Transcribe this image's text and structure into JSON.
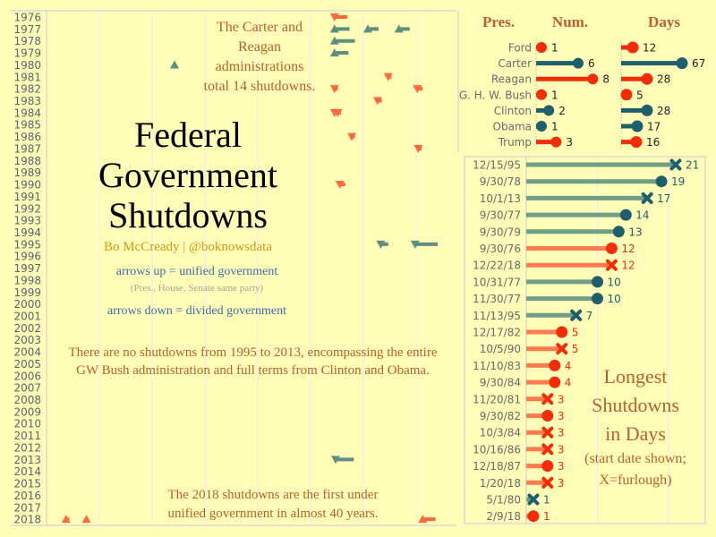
{
  "title": "Federal Government Shutdowns",
  "title_lines": [
    "Federal",
    "Government",
    "Shutdowns"
  ],
  "byline": "Bo McCready | @boknowsdata",
  "legend": {
    "up": "arrows up = unified government",
    "up_note": "(Pres., House, Senate same party)",
    "down": "arrows down = divided government"
  },
  "annotations": {
    "carter_reagan": [
      "The Carter and",
      "Reagan",
      "administrations",
      "total 14 shutdowns."
    ],
    "gap": [
      "There are no shutdowns from 1995 to 2013, encompassing the entire",
      "GW Bush administration and full terms from Clinton and Obama."
    ],
    "y2018": [
      "The 2018 shutdowns are the first under",
      "unified government in almost 40 years."
    ],
    "longest": [
      "Longest",
      "Shutdowns",
      "in Days",
      "(start date shown;",
      "X=furlough)"
    ]
  },
  "colors": {
    "background": "#fffdb8",
    "democrat": "#1f5f6b",
    "republican": "#f22d0a",
    "democrat_bar": "#6f9e85",
    "republican_bar": "#ff7b4f",
    "annotation": "#b8612a"
  },
  "chart_data": [
    {
      "type": "scatter",
      "description_key": "timeline",
      "years": [
        1976,
        1977,
        1978,
        1979,
        1980,
        1981,
        1982,
        1983,
        1984,
        1985,
        1986,
        1987,
        1988,
        1989,
        1990,
        1991,
        1992,
        1993,
        1994,
        1995,
        1996,
        1997,
        1998,
        1999,
        2000,
        2001,
        2002,
        2003,
        2004,
        2005,
        2006,
        2007,
        2008,
        2009,
        2010,
        2011,
        2012,
        2013,
        2014,
        2015,
        2016,
        2017,
        2018
      ],
      "points": [
        {
          "date": "1976-09-30",
          "days": 12,
          "party": "R",
          "gov": "divided"
        },
        {
          "date": "1977-09-30",
          "days": 14,
          "party": "D",
          "gov": "unified"
        },
        {
          "date": "1977-10-31",
          "days": 10,
          "party": "D",
          "gov": "unified"
        },
        {
          "date": "1977-11-30",
          "days": 10,
          "party": "D",
          "gov": "unified"
        },
        {
          "date": "1978-09-30",
          "days": 19,
          "party": "D",
          "gov": "unified"
        },
        {
          "date": "1979-09-30",
          "days": 13,
          "party": "D",
          "gov": "unified"
        },
        {
          "date": "1980-05-01",
          "days": 1,
          "party": "D",
          "gov": "unified"
        },
        {
          "date": "1981-11-20",
          "days": 3,
          "party": "R",
          "gov": "divided"
        },
        {
          "date": "1982-09-30",
          "days": 3,
          "party": "R",
          "gov": "divided"
        },
        {
          "date": "1982-12-17",
          "days": 5,
          "party": "R",
          "gov": "divided"
        },
        {
          "date": "1983-11-10",
          "days": 4,
          "party": "R",
          "gov": "divided"
        },
        {
          "date": "1984-09-30",
          "days": 4,
          "party": "R",
          "gov": "divided"
        },
        {
          "date": "1984-10-03",
          "days": 3,
          "party": "R",
          "gov": "divided"
        },
        {
          "date": "1986-10-16",
          "days": 3,
          "party": "R",
          "gov": "divided"
        },
        {
          "date": "1987-12-18",
          "days": 3,
          "party": "R",
          "gov": "divided"
        },
        {
          "date": "1990-10-05",
          "days": 5,
          "party": "R",
          "gov": "divided"
        },
        {
          "date": "1995-11-13",
          "days": 7,
          "party": "D",
          "gov": "divided"
        },
        {
          "date": "1995-12-15",
          "days": 21,
          "party": "D",
          "gov": "divided"
        },
        {
          "date": "2013-10-01",
          "days": 17,
          "party": "D",
          "gov": "divided"
        },
        {
          "date": "2018-01-20",
          "days": 3,
          "party": "R",
          "gov": "unified"
        },
        {
          "date": "2018-02-09",
          "days": 1,
          "party": "R",
          "gov": "unified"
        },
        {
          "date": "2018-12-22",
          "days": 12,
          "party": "R",
          "gov": "unified"
        }
      ]
    },
    {
      "type": "bar",
      "headers": {
        "pres": "Pres.",
        "num": "Num.",
        "days": "Days"
      },
      "categories": [
        "Ford",
        "Carter",
        "Reagan",
        "G. H. W. Bush",
        "Clinton",
        "Obama",
        "Trump"
      ],
      "party": [
        "R",
        "D",
        "R",
        "R",
        "D",
        "D",
        "R"
      ],
      "series": [
        {
          "name": "Num.",
          "values": [
            1,
            6,
            8,
            1,
            2,
            1,
            3
          ]
        },
        {
          "name": "Days",
          "values": [
            12,
            67,
            28,
            5,
            28,
            17,
            16
          ]
        }
      ]
    },
    {
      "type": "bar",
      "categories": [
        "12/15/95",
        "9/30/78",
        "10/1/13",
        "9/30/77",
        "9/30/79",
        "9/30/76",
        "12/22/18",
        "10/31/77",
        "11/30/77",
        "11/13/95",
        "12/17/82",
        "10/5/90",
        "11/10/83",
        "9/30/84",
        "11/20/81",
        "9/30/82",
        "10/3/84",
        "10/16/86",
        "12/18/87",
        "1/20/18",
        "5/1/80",
        "2/9/18"
      ],
      "values": [
        21,
        19,
        17,
        14,
        13,
        12,
        12,
        10,
        10,
        7,
        5,
        5,
        4,
        4,
        3,
        3,
        3,
        3,
        3,
        3,
        1,
        1
      ],
      "party": [
        "D",
        "D",
        "D",
        "D",
        "D",
        "R",
        "R",
        "D",
        "D",
        "D",
        "R",
        "R",
        "R",
        "R",
        "R",
        "R",
        "R",
        "R",
        "R",
        "R",
        "D",
        "R"
      ],
      "furlough": [
        true,
        false,
        true,
        false,
        false,
        false,
        true,
        false,
        false,
        true,
        false,
        true,
        false,
        false,
        true,
        false,
        true,
        true,
        false,
        true,
        true,
        false
      ],
      "xlim": [
        0,
        25
      ],
      "grid": true
    }
  ]
}
